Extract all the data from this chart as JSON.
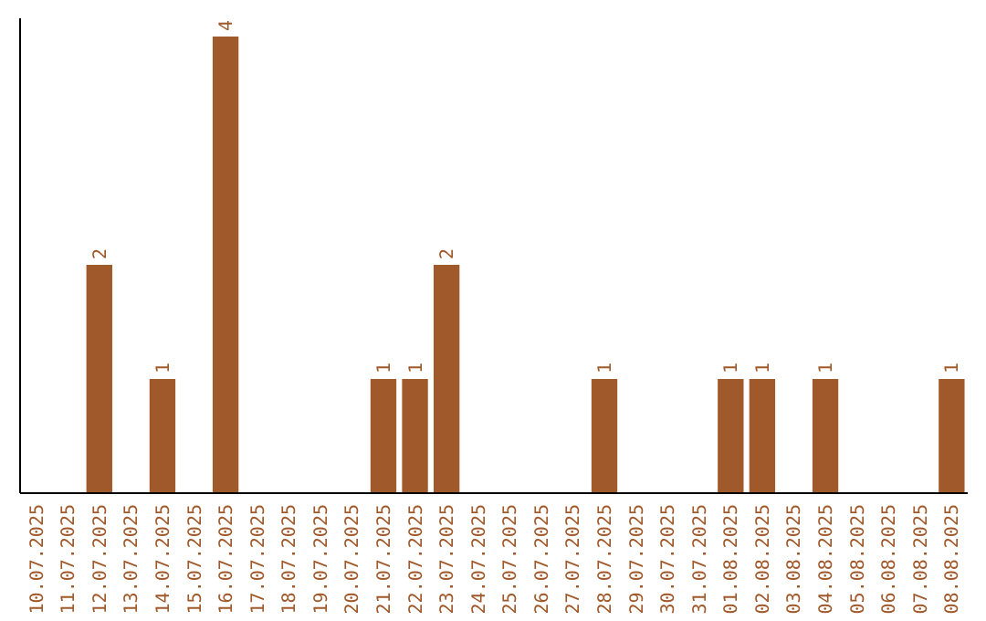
{
  "chart_data": {
    "type": "bar",
    "categories": [
      "10.07.2025",
      "11.07.2025",
      "12.07.2025",
      "13.07.2025",
      "14.07.2025",
      "15.07.2025",
      "16.07.2025",
      "17.07.2025",
      "18.07.2025",
      "19.07.2025",
      "20.07.2025",
      "21.07.2025",
      "22.07.2025",
      "23.07.2025",
      "24.07.2025",
      "25.07.2025",
      "26.07.2025",
      "27.07.2025",
      "28.07.2025",
      "29.07.2025",
      "30.07.2025",
      "31.07.2025",
      "01.08.2025",
      "02.08.2025",
      "03.08.2025",
      "04.08.2025",
      "05.08.2025",
      "06.08.2025",
      "07.08.2025",
      "08.08.2025"
    ],
    "values": [
      0,
      0,
      2,
      0,
      1,
      0,
      4,
      0,
      0,
      0,
      0,
      1,
      1,
      2,
      0,
      0,
      0,
      0,
      1,
      0,
      0,
      0,
      1,
      1,
      0,
      1,
      0,
      0,
      0,
      1
    ],
    "value_labels": [
      null,
      null,
      "2",
      null,
      "1",
      null,
      "4",
      null,
      null,
      null,
      null,
      "1",
      "1",
      "2",
      null,
      null,
      null,
      null,
      "1",
      null,
      null,
      null,
      "1",
      "1",
      null,
      "1",
      null,
      null,
      null,
      "1"
    ],
    "color": "#a0592b",
    "ylim": [
      0,
      4.16
    ],
    "tick_labels": "x"
  }
}
